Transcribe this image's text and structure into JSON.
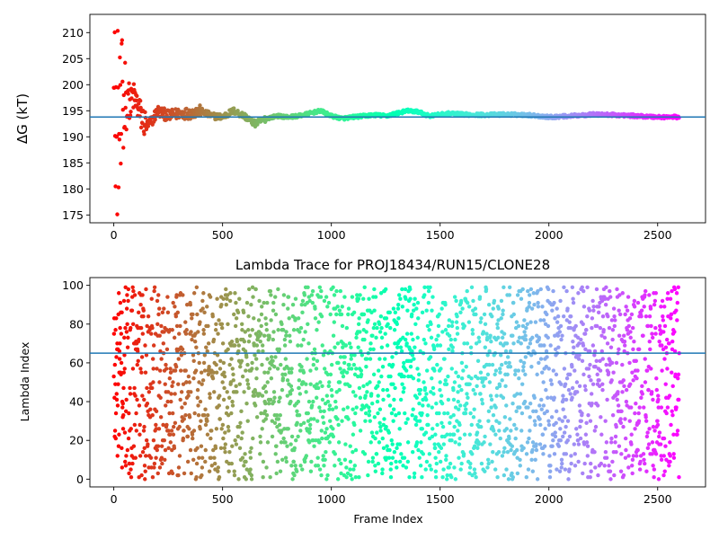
{
  "chart_data": [
    {
      "type": "scatter",
      "title": "",
      "xlabel": "",
      "ylabel": "ΔG (kT)",
      "xlim": [
        -110,
        2720
      ],
      "ylim": [
        173.5,
        213.5
      ],
      "xticks": [
        0,
        500,
        1000,
        1500,
        2000,
        2500
      ],
      "yticks": [
        175,
        180,
        185,
        190,
        195,
        200,
        205,
        210
      ],
      "hline": 193.8,
      "hline_color": "#1f77b4",
      "colormap": "rainbow (red at frame 0 → violet at last frame)",
      "n_frames": 2600,
      "series": [
        {
          "name": "",
          "x": [
            5,
            15,
            25,
            35,
            45,
            55,
            65,
            75,
            85,
            100,
            125,
            150,
            175,
            200,
            250,
            300,
            350,
            400,
            450,
            500,
            550,
            600,
            650,
            700,
            750,
            800,
            850,
            900,
            950,
            1000,
            1050,
            1100,
            1150,
            1200,
            1250,
            1300,
            1350,
            1400,
            1450,
            1500,
            1550,
            1600,
            1700,
            1800,
            1900,
            2000,
            2100,
            2200,
            2300,
            2400,
            2500,
            2590
          ],
          "y": [
            200,
            210,
            190,
            180,
            205,
            190,
            200,
            195,
            198,
            197,
            194,
            192,
            193,
            195,
            194,
            194.5,
            194.5,
            195,
            194,
            193.8,
            195,
            194,
            192.5,
            193.5,
            194,
            193.8,
            194,
            194.5,
            195,
            194,
            193.5,
            193.8,
            194,
            194.2,
            194,
            194.5,
            195,
            194.8,
            194,
            194.3,
            194.5,
            194.3,
            194.2,
            194.3,
            194.2,
            193.8,
            194,
            194.3,
            194.2,
            194,
            193.8,
            193.8
          ]
        }
      ]
    },
    {
      "type": "scatter",
      "title": "Lambda Trace for PROJ18434/RUN15/CLONE28",
      "xlabel": "Frame Index",
      "ylabel": "Lambda Index",
      "xlim": [
        -110,
        2720
      ],
      "ylim": [
        -4,
        104
      ],
      "xticks": [
        0,
        500,
        1000,
        1500,
        2000,
        2500
      ],
      "yticks": [
        0,
        20,
        40,
        60,
        80,
        100
      ],
      "hline": 65,
      "hline_color": "#1f77b4",
      "colormap": "rainbow (red at frame 0 → violet at last frame)",
      "n_frames": 2600,
      "value_range": [
        0,
        99
      ],
      "series": [
        {
          "name": "",
          "x": [
            10,
            40,
            80,
            150,
            250,
            400,
            600,
            800,
            1000,
            1200,
            1400,
            1600,
            1800,
            2000,
            2200,
            2400,
            2590
          ],
          "y": [
            20,
            70,
            95,
            45,
            10,
            60,
            85,
            30,
            5,
            75,
            50,
            25,
            90,
            15,
            65,
            40,
            80
          ]
        }
      ]
    }
  ]
}
